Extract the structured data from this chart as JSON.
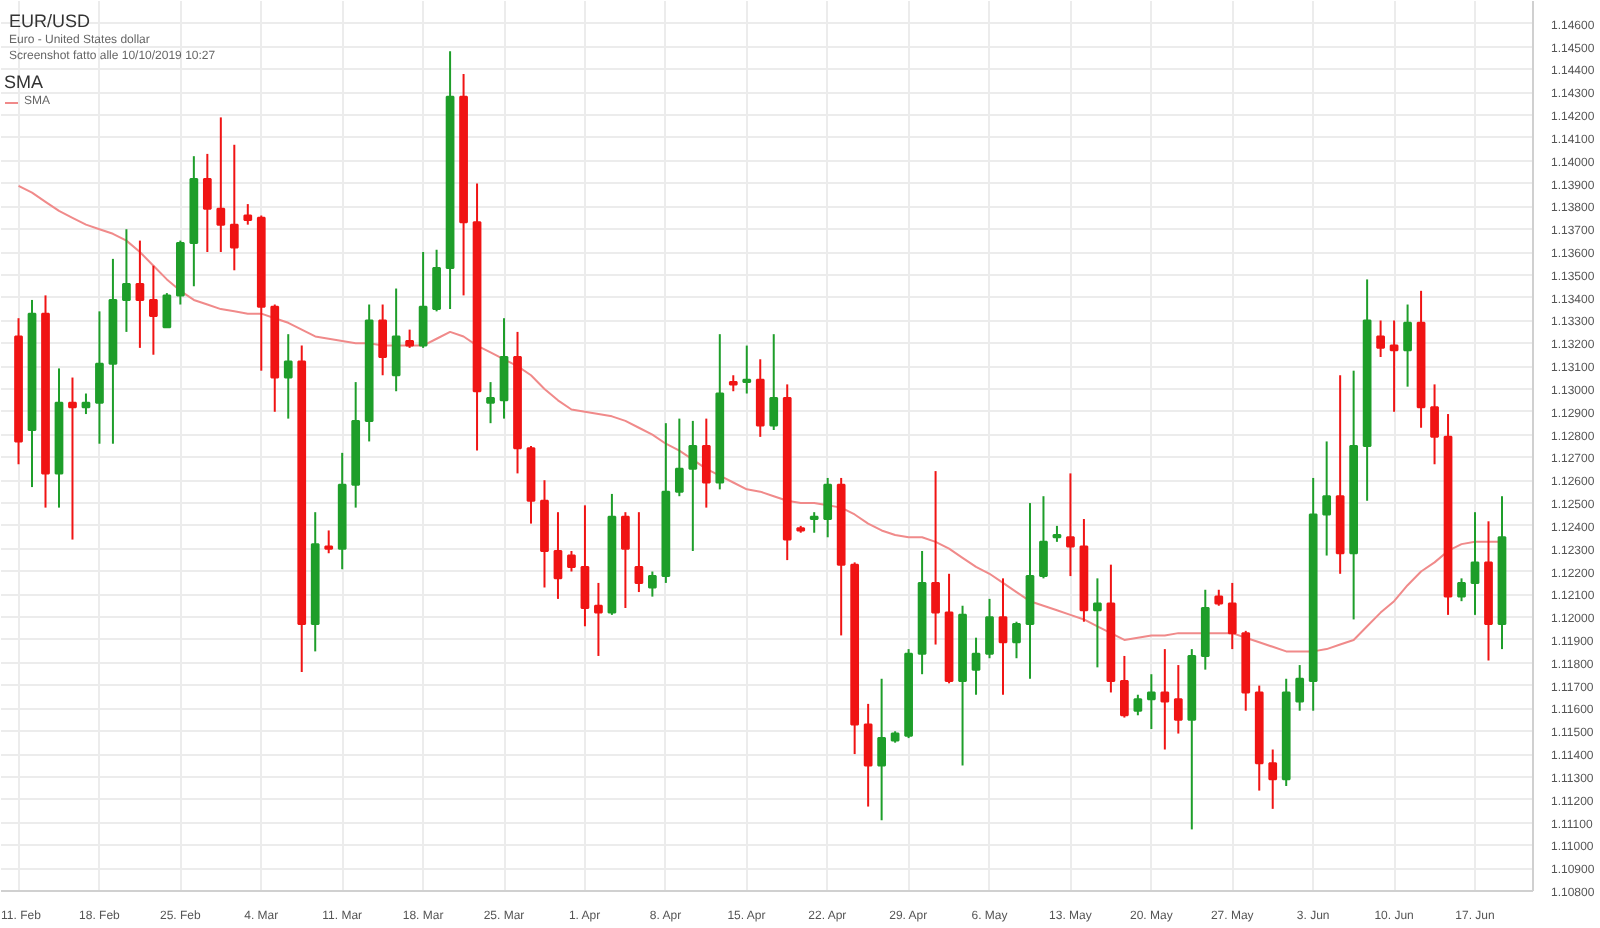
{
  "chart_data": {
    "type": "candlestick",
    "title": "EUR/USD",
    "subtitle": "Euro - United States dollar",
    "annotations": [
      "Screenshot fatto alle 10/10/2019 10:27"
    ],
    "legend_title": "SMA",
    "legend": "top left",
    "grid": true,
    "categories": [
      "11. Feb",
      null,
      null,
      null,
      null,
      null,
      "18. Feb",
      null,
      null,
      null,
      null,
      null,
      "25. Feb",
      null,
      null,
      null,
      null,
      null,
      "4. Mar",
      null,
      null,
      null,
      null,
      null,
      "11. Mar",
      null,
      null,
      null,
      null,
      null,
      "18. Mar",
      null,
      null,
      null,
      null,
      null,
      "25. Mar",
      null,
      null,
      null,
      null,
      null,
      "1. Apr",
      null,
      null,
      null,
      null,
      null,
      "8. Apr",
      null,
      null,
      null,
      null,
      null,
      "15. Apr",
      null,
      null,
      null,
      null,
      null,
      "22. Apr",
      null,
      null,
      null,
      null,
      null,
      "29. Apr",
      null,
      null,
      null,
      null,
      null,
      "6. May",
      null,
      null,
      null,
      null,
      null,
      "13. May",
      null,
      null,
      null,
      null,
      null,
      "20. May",
      null,
      null,
      null,
      null,
      null,
      "27. May",
      null,
      null,
      null,
      null,
      null,
      "3. Jun",
      null,
      null,
      null,
      null,
      null,
      "10. Jun",
      null,
      null,
      null,
      null,
      null,
      "17. Jun",
      null,
      null
    ],
    "ohlc": [
      [
        1.1323,
        1.1331,
        1.1267,
        1.1277
      ],
      [
        1.1282,
        1.1339,
        1.1257,
        1.1333
      ],
      [
        1.1333,
        1.1341,
        1.1248,
        1.1263
      ],
      [
        1.1263,
        1.1309,
        1.1248,
        1.1294
      ],
      [
        1.1294,
        1.1305,
        1.1234,
        1.1292
      ],
      [
        1.1292,
        1.1298,
        1.1289,
        1.1294
      ],
      [
        1.1294,
        1.1334,
        1.1276,
        1.1311
      ],
      [
        1.1311,
        1.1357,
        1.1276,
        1.1339
      ],
      [
        1.1339,
        1.137,
        1.1325,
        1.1346
      ],
      [
        1.1346,
        1.1365,
        1.1318,
        1.1339
      ],
      [
        1.1339,
        1.1354,
        1.1315,
        1.1332
      ],
      [
        1.1327,
        1.1342,
        1.1327,
        1.1341
      ],
      [
        1.1341,
        1.1365,
        1.1337,
        1.1364
      ],
      [
        1.1364,
        1.1402,
        1.1345,
        1.1392
      ],
      [
        1.1392,
        1.1403,
        1.136,
        1.1379
      ],
      [
        1.1379,
        1.1419,
        1.136,
        1.1372
      ],
      [
        1.1372,
        1.1407,
        1.1352,
        1.1362
      ],
      [
        1.1376,
        1.1381,
        1.1372,
        1.1374
      ],
      [
        1.1375,
        1.1376,
        1.1308,
        1.1336
      ],
      [
        1.1336,
        1.1337,
        1.129,
        1.1305
      ],
      [
        1.1305,
        1.1324,
        1.1287,
        1.1312
      ],
      [
        1.1312,
        1.1319,
        1.1176,
        1.1197
      ],
      [
        1.1197,
        1.1246,
        1.1185,
        1.1232
      ],
      [
        1.1231,
        1.1238,
        1.1228,
        1.123
      ],
      [
        1.123,
        1.1272,
        1.1221,
        1.1258
      ],
      [
        1.1258,
        1.1303,
        1.1248,
        1.1286
      ],
      [
        1.1286,
        1.1337,
        1.1277,
        1.133
      ],
      [
        1.133,
        1.1337,
        1.1306,
        1.1314
      ],
      [
        1.1306,
        1.1344,
        1.1299,
        1.1323
      ],
      [
        1.1321,
        1.1326,
        1.1318,
        1.1319
      ],
      [
        1.1319,
        1.136,
        1.1318,
        1.1336
      ],
      [
        1.1335,
        1.1361,
        1.1334,
        1.1353
      ],
      [
        1.1353,
        1.1448,
        1.1335,
        1.1428
      ],
      [
        1.1428,
        1.1438,
        1.1341,
        1.1373
      ],
      [
        1.1373,
        1.139,
        1.1273,
        1.1299
      ],
      [
        1.1294,
        1.1303,
        1.1285,
        1.1296
      ],
      [
        1.1295,
        1.1331,
        1.1287,
        1.1314
      ],
      [
        1.1314,
        1.1325,
        1.1263,
        1.1274
      ],
      [
        1.1274,
        1.1275,
        1.1241,
        1.1251
      ],
      [
        1.1251,
        1.126,
        1.1213,
        1.1229
      ],
      [
        1.1229,
        1.1246,
        1.1208,
        1.1217
      ],
      [
        1.1227,
        1.1229,
        1.122,
        1.1222
      ],
      [
        1.1222,
        1.1249,
        1.1196,
        1.1204
      ],
      [
        1.1205,
        1.1215,
        1.1183,
        1.1202
      ],
      [
        1.1202,
        1.1254,
        1.1201,
        1.1244
      ],
      [
        1.1244,
        1.1246,
        1.1204,
        1.123
      ],
      [
        1.1222,
        1.1246,
        1.1211,
        1.1215
      ],
      [
        1.1213,
        1.122,
        1.1209,
        1.1218
      ],
      [
        1.1218,
        1.1285,
        1.1215,
        1.1255
      ],
      [
        1.1255,
        1.1287,
        1.1253,
        1.1265
      ],
      [
        1.1265,
        1.1286,
        1.1229,
        1.1275
      ],
      [
        1.1275,
        1.1287,
        1.1248,
        1.1259
      ],
      [
        1.1259,
        1.1324,
        1.1256,
        1.1298
      ],
      [
        1.1303,
        1.1306,
        1.1299,
        1.1302
      ],
      [
        1.1303,
        1.1319,
        1.1298,
        1.1304
      ],
      [
        1.1304,
        1.1313,
        1.1279,
        1.1284
      ],
      [
        1.1284,
        1.1324,
        1.1282,
        1.1296
      ],
      [
        1.1296,
        1.1302,
        1.1225,
        1.1234
      ],
      [
        1.1239,
        1.124,
        1.1237,
        1.1238
      ],
      [
        1.1243,
        1.1246,
        1.1237,
        1.1244
      ],
      [
        1.1243,
        1.1261,
        1.1235,
        1.1258
      ],
      [
        1.1258,
        1.1261,
        1.1192,
        1.1223
      ],
      [
        1.1223,
        1.1224,
        1.114,
        1.1153
      ],
      [
        1.1153,
        1.1162,
        1.1117,
        1.1135
      ],
      [
        1.1135,
        1.1173,
        1.1111,
        1.1147
      ],
      [
        1.1146,
        1.115,
        1.1145,
        1.1149
      ],
      [
        1.1148,
        1.1186,
        1.1147,
        1.1184
      ],
      [
        1.1184,
        1.1229,
        1.1175,
        1.1215
      ],
      [
        1.1215,
        1.1264,
        1.1188,
        1.1202
      ],
      [
        1.1202,
        1.1219,
        1.1171,
        1.1172
      ],
      [
        1.1172,
        1.1205,
        1.1135,
        1.1201
      ],
      [
        1.1177,
        1.1191,
        1.1166,
        1.1184
      ],
      [
        1.1184,
        1.1208,
        1.1182,
        1.12
      ],
      [
        1.12,
        1.1217,
        1.1166,
        1.1189
      ],
      [
        1.1189,
        1.1198,
        1.1182,
        1.1197
      ],
      [
        1.1197,
        1.125,
        1.1173,
        1.1218
      ],
      [
        1.1218,
        1.1253,
        1.1217,
        1.1233
      ],
      [
        1.1235,
        1.124,
        1.1233,
        1.1236
      ],
      [
        1.1235,
        1.1263,
        1.1218,
        1.1231
      ],
      [
        1.1231,
        1.1243,
        1.1198,
        1.1203
      ],
      [
        1.1203,
        1.1217,
        1.1178,
        1.1206
      ],
      [
        1.1206,
        1.1223,
        1.1167,
        1.1172
      ],
      [
        1.1172,
        1.1183,
        1.1156,
        1.1157
      ],
      [
        1.1159,
        1.1166,
        1.1157,
        1.1164
      ],
      [
        1.1164,
        1.1175,
        1.1151,
        1.1167
      ],
      [
        1.1167,
        1.1186,
        1.1142,
        1.1163
      ],
      [
        1.1164,
        1.1179,
        1.1149,
        1.1155
      ],
      [
        1.1155,
        1.1186,
        1.1107,
        1.1183
      ],
      [
        1.1183,
        1.1212,
        1.1177,
        1.1204
      ],
      [
        1.1209,
        1.1212,
        1.1205,
        1.1206
      ],
      [
        1.1206,
        1.1215,
        1.1186,
        1.1193
      ],
      [
        1.1193,
        1.1194,
        1.1159,
        1.1167
      ],
      [
        1.1167,
        1.117,
        1.1124,
        1.1136
      ],
      [
        1.1136,
        1.1142,
        1.1116,
        1.1129
      ],
      [
        1.1129,
        1.1173,
        1.1126,
        1.1167
      ],
      [
        1.1163,
        1.1179,
        1.1159,
        1.1173
      ],
      [
        1.1172,
        1.1261,
        1.1159,
        1.1245
      ],
      [
        1.1245,
        1.1277,
        1.1227,
        1.1253
      ],
      [
        1.1253,
        1.1306,
        1.1219,
        1.1228
      ],
      [
        1.1228,
        1.1308,
        1.1199,
        1.1275
      ],
      [
        1.1275,
        1.1348,
        1.1251,
        1.133
      ],
      [
        1.1323,
        1.133,
        1.1314,
        1.1318
      ],
      [
        1.1319,
        1.133,
        1.129,
        1.1317
      ],
      [
        1.1317,
        1.1337,
        1.1301,
        1.1329
      ],
      [
        1.1329,
        1.1343,
        1.1283,
        1.1292
      ],
      [
        1.1292,
        1.1302,
        1.1267,
        1.1279
      ],
      [
        1.1279,
        1.1289,
        1.1201,
        1.1209
      ],
      [
        1.1209,
        1.1217,
        1.1207,
        1.1215
      ],
      [
        1.1215,
        1.1246,
        1.1201,
        1.1224
      ],
      [
        1.1224,
        1.1242,
        1.1181,
        1.1197
      ],
      [
        1.1197,
        1.1253,
        1.1186,
        1.1235
      ]
    ],
    "colors": [
      "#f01414",
      "#1e9e2a",
      "#f01414",
      "#1e9e2a",
      "#f01414",
      "#1e9e2a",
      "#1e9e2a",
      "#1e9e2a",
      "#1e9e2a",
      "#f01414",
      "#f01414",
      "#1e9e2a",
      "#1e9e2a",
      "#1e9e2a",
      "#f01414",
      "#f01414",
      "#f01414",
      "#f01414",
      "#f01414",
      "#f01414",
      "#1e9e2a",
      "#f01414",
      "#1e9e2a",
      "#f01414",
      "#1e9e2a",
      "#1e9e2a",
      "#1e9e2a",
      "#f01414",
      "#1e9e2a",
      "#f01414",
      "#1e9e2a",
      "#1e9e2a",
      "#1e9e2a",
      "#f01414",
      "#f01414",
      "#1e9e2a",
      "#1e9e2a",
      "#f01414",
      "#f01414",
      "#f01414",
      "#f01414",
      "#f01414",
      "#f01414",
      "#f01414",
      "#1e9e2a",
      "#f01414",
      "#f01414",
      "#1e9e2a",
      "#1e9e2a",
      "#1e9e2a",
      "#1e9e2a",
      "#f01414",
      "#1e9e2a",
      "#f01414",
      "#1e9e2a",
      "#f01414",
      "#1e9e2a",
      "#f01414",
      "#f01414",
      "#1e9e2a",
      "#1e9e2a",
      "#f01414",
      "#f01414",
      "#f01414",
      "#1e9e2a",
      "#1e9e2a",
      "#1e9e2a",
      "#1e9e2a",
      "#f01414",
      "#f01414",
      "#1e9e2a",
      "#1e9e2a",
      "#1e9e2a",
      "#f01414",
      "#1e9e2a",
      "#1e9e2a",
      "#1e9e2a",
      "#1e9e2a",
      "#f01414",
      "#f01414",
      "#1e9e2a",
      "#f01414",
      "#f01414",
      "#1e9e2a",
      "#1e9e2a",
      "#f01414",
      "#f01414",
      "#1e9e2a",
      "#1e9e2a",
      "#f01414",
      "#f01414",
      "#f01414",
      "#f01414",
      "#f01414",
      "#1e9e2a",
      "#1e9e2a",
      "#1e9e2a",
      "#1e9e2a",
      "#f01414",
      "#1e9e2a",
      "#1e9e2a",
      "#f01414",
      "#f01414",
      "#1e9e2a",
      "#f01414",
      "#f01414",
      "#f01414",
      "#1e9e2a",
      "#1e9e2a",
      "#f01414",
      "#1e9e2a"
    ],
    "series": [
      {
        "name": "SMA",
        "type": "line",
        "color": "#f08a8a",
        "values": [
          1.1389,
          1.1386,
          1.1382,
          1.1378,
          1.1375,
          1.1372,
          1.137,
          1.1368,
          1.1365,
          1.136,
          1.1354,
          1.1348,
          1.1343,
          1.1339,
          1.1337,
          1.1335,
          1.1334,
          1.1333,
          1.1333,
          1.1331,
          1.1329,
          1.1326,
          1.1323,
          1.1322,
          1.1321,
          1.132,
          1.132,
          1.1319,
          1.1319,
          1.1319,
          1.1319,
          1.1322,
          1.1325,
          1.1323,
          1.1319,
          1.1316,
          1.1313,
          1.131,
          1.1306,
          1.13,
          1.1295,
          1.1291,
          1.129,
          1.1289,
          1.1288,
          1.1286,
          1.1283,
          1.128,
          1.1276,
          1.1273,
          1.1269,
          1.1265,
          1.1262,
          1.1259,
          1.1256,
          1.1255,
          1.1253,
          1.1251,
          1.125,
          1.125,
          1.1249,
          1.1248,
          1.1245,
          1.1241,
          1.1238,
          1.1236,
          1.1235,
          1.1235,
          1.1233,
          1.123,
          1.1226,
          1.1222,
          1.1219,
          1.1215,
          1.1211,
          1.1207,
          1.1205,
          1.1203,
          1.1201,
          1.1199,
          1.1196,
          1.1193,
          1.119,
          1.1191,
          1.1192,
          1.1192,
          1.1193,
          1.1193,
          1.1193,
          1.1193,
          1.1193,
          1.1191,
          1.1189,
          1.1187,
          1.1185,
          1.1185,
          1.1185,
          1.1186,
          1.1188,
          1.119,
          1.1196,
          1.1202,
          1.1207,
          1.1214,
          1.122,
          1.1224,
          1.1229,
          1.1232,
          1.1233,
          1.1233,
          1.1233
        ]
      }
    ],
    "ylim": [
      1.108,
      1.147
    ],
    "yticks": [
      {
        "value": 1.108,
        "label": "1.10800"
      },
      {
        "value": 1.109,
        "label": "1.10900"
      },
      {
        "value": 1.11,
        "label": "1.11000"
      },
      {
        "value": 1.111,
        "label": "1.11100"
      },
      {
        "value": 1.112,
        "label": "1.11200"
      },
      {
        "value": 1.113,
        "label": "1.11300"
      },
      {
        "value": 1.114,
        "label": "1.11400"
      },
      {
        "value": 1.115,
        "label": "1.11500"
      },
      {
        "value": 1.116,
        "label": "1.11600"
      },
      {
        "value": 1.117,
        "label": "1.11700"
      },
      {
        "value": 1.118,
        "label": "1.11800"
      },
      {
        "value": 1.119,
        "label": "1.11900"
      },
      {
        "value": 1.12,
        "label": "1.12000"
      },
      {
        "value": 1.121,
        "label": "1.12100"
      },
      {
        "value": 1.122,
        "label": "1.12200"
      },
      {
        "value": 1.123,
        "label": "1.12300"
      },
      {
        "value": 1.124,
        "label": "1.12400"
      },
      {
        "value": 1.125,
        "label": "1.12500"
      },
      {
        "value": 1.126,
        "label": "1.12600"
      },
      {
        "value": 1.127,
        "label": "1.12700"
      },
      {
        "value": 1.128,
        "label": "1.12800"
      },
      {
        "value": 1.129,
        "label": "1.12900"
      },
      {
        "value": 1.13,
        "label": "1.13000"
      },
      {
        "value": 1.131,
        "label": "1.13100"
      },
      {
        "value": 1.132,
        "label": "1.13200"
      },
      {
        "value": 1.133,
        "label": "1.13300"
      },
      {
        "value": 1.134,
        "label": "1.13400"
      },
      {
        "value": 1.135,
        "label": "1.13500"
      },
      {
        "value": 1.136,
        "label": "1.13600"
      },
      {
        "value": 1.137,
        "label": "1.13700"
      },
      {
        "value": 1.138,
        "label": "1.13800"
      },
      {
        "value": 1.139,
        "label": "1.13900"
      },
      {
        "value": 1.14,
        "label": "1.14000"
      },
      {
        "value": 1.141,
        "label": "1.14100"
      },
      {
        "value": 1.142,
        "label": "1.14200"
      },
      {
        "value": 1.143,
        "label": "1.14300"
      },
      {
        "value": 1.144,
        "label": "1.14400"
      },
      {
        "value": 1.145,
        "label": "1.14500"
      },
      {
        "value": 1.146,
        "label": "1.14600"
      }
    ]
  }
}
